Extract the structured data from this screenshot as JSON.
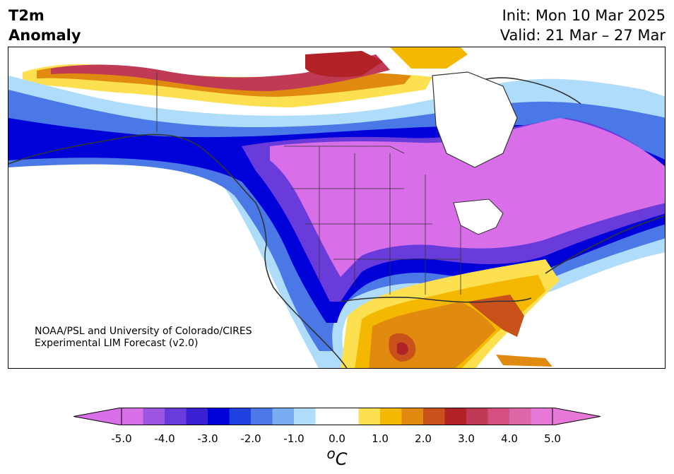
{
  "title": {
    "variable_line1": "T2m",
    "variable_line2": "Anomaly",
    "init": "Init: Mon 10 Mar 2025",
    "valid": "Valid: 21 Mar – 27 Mar"
  },
  "credit": {
    "line1": "NOAA/PSL and University of Colorado/CIRES",
    "line2": "Experimental LIM Forecast (v2.0)"
  },
  "colorbar": {
    "unit_label": "°C",
    "unit_sup": "o",
    "unit_text": "C",
    "min": -5.0,
    "max": 5.0,
    "ticks": [
      "-5.0",
      "-4.0",
      "-3.0",
      "-2.0",
      "-1.0",
      "0.0",
      "1.0",
      "2.0",
      "3.0",
      "4.0",
      "5.0"
    ],
    "colors": [
      "#d86ee8",
      "#9b55e0",
      "#6a3bdb",
      "#3a22d4",
      "#0000d8",
      "#2040e0",
      "#4a78e6",
      "#78aef0",
      "#b0dcfb",
      "#ffffff",
      "#ffffff",
      "#fce050",
      "#f4b800",
      "#e08a10",
      "#c8521a",
      "#b02226",
      "#c03a55",
      "#d55080",
      "#dc66a8",
      "#e878d8"
    ]
  },
  "map_colors": {
    "land": "#ffffff",
    "ocean": "#ffffff",
    "coast": "#333333",
    "border": "#333333"
  }
}
